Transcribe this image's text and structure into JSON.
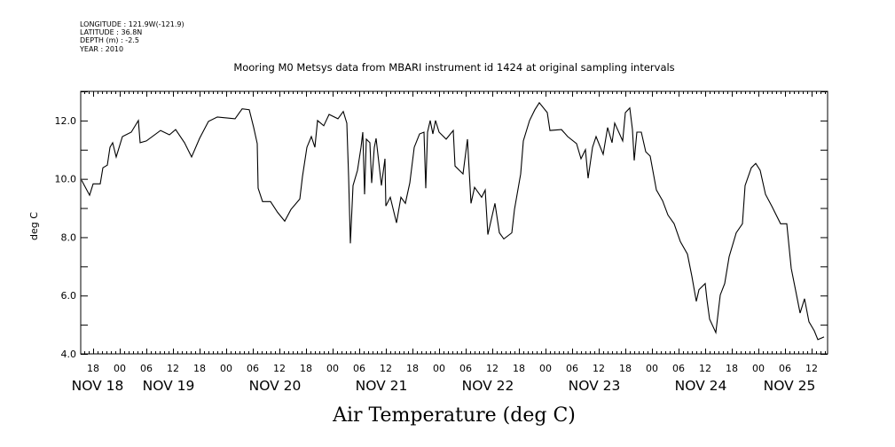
{
  "header": {
    "longitude": "LONGITUDE : 121.9W(-121.9)",
    "latitude": "LATITUDE : 36.8N",
    "depth": "DEPTH (m) : -2.5",
    "year": "YEAR : 2010"
  },
  "chart_data": {
    "type": "line",
    "title": "Mooring M0 Metsys data from MBARI instrument id 1424 at original sampling intervals",
    "xlabel": "Air Temperature (deg C)",
    "ylabel": "deg C",
    "x_unit": "hours since NOV 19 00:00",
    "xlim": [
      -8.8,
      159.6
    ],
    "ylim": [
      4,
      13
    ],
    "yticks": [
      4,
      6,
      8,
      10,
      12
    ],
    "ytick_labels": [
      "4.0",
      "6.0",
      "8.0",
      "10.0",
      "12.0"
    ],
    "hour_ticks": [
      -6,
      0,
      6,
      12,
      18,
      24,
      30,
      36,
      42,
      48,
      54,
      60,
      66,
      72,
      78,
      84,
      90,
      96,
      102,
      108,
      114,
      120,
      126,
      132,
      138,
      144,
      150,
      156
    ],
    "hour_labels": [
      "18",
      "00",
      "06",
      "12",
      "18",
      "00",
      "06",
      "12",
      "18",
      "00",
      "06",
      "12",
      "18",
      "00",
      "06",
      "12",
      "18",
      "00",
      "06",
      "12",
      "18",
      "00",
      "06",
      "12",
      "18",
      "00",
      "06",
      "12"
    ],
    "day_labels": [
      {
        "label": "NOV 18",
        "at": -5
      },
      {
        "label": "NOV 19",
        "at": 11
      },
      {
        "label": "NOV 20",
        "at": 35
      },
      {
        "label": "NOV 21",
        "at": 59
      },
      {
        "label": "NOV 22",
        "at": 83
      },
      {
        "label": "NOV 23",
        "at": 107
      },
      {
        "label": "NOV 24",
        "at": 131
      },
      {
        "label": "NOV 25",
        "at": 151
      }
    ],
    "grid": false,
    "series": [
      {
        "name": "Air Temperature",
        "x": [
          -8.6,
          -6.8,
          -6,
          -4.4,
          -3.8,
          -2.8,
          -2.2,
          -1.6,
          -0.8,
          0.6,
          2.6,
          4.2,
          4.6,
          6,
          9.2,
          11.2,
          12.6,
          14.6,
          16.2,
          18,
          20,
          22,
          26,
          27.6,
          29.2,
          30.2,
          31,
          31.2,
          32.2,
          34,
          35.6,
          37.2,
          38.6,
          40.6,
          41.2,
          42.2,
          43.2,
          44,
          44.6,
          46,
          47.2,
          49.2,
          50.4,
          51.2,
          51.6,
          52,
          52.6,
          53.6,
          54.4,
          54.8,
          55.2,
          55.6,
          56.4,
          56.8,
          57.4,
          57.8,
          59,
          59.8,
          60,
          61,
          62.4,
          63.4,
          64.4,
          65.4,
          66.4,
          67.6,
          68.6,
          69,
          69.4,
          70,
          70.6,
          71.2,
          72,
          73.6,
          75.2,
          75.6,
          77.4,
          78.4,
          79.2,
          80,
          81.6,
          82.4,
          83,
          84.6,
          85.6,
          86.6,
          88.4,
          89,
          90.4,
          91,
          92.4,
          93.6,
          94.6,
          96.4,
          97,
          99.6,
          101,
          103,
          104,
          105,
          105.6,
          106.6,
          107.4,
          109,
          110,
          111,
          111.6,
          113.4,
          114,
          115,
          115.6,
          116,
          116.6,
          117.6,
          118.6,
          119.6,
          121,
          122.4,
          123.6,
          125,
          126.4,
          128,
          129,
          130,
          130.6,
          132,
          132.4,
          133,
          134.4,
          135.4,
          136.4,
          137.4,
          139,
          140.4,
          141,
          142.4,
          143.4,
          144.4,
          145.6,
          147,
          149,
          150.4,
          151.4,
          152.4,
          153.4,
          154.4,
          155.4,
          156.6,
          157.4,
          158.8
        ],
        "y": [
          9.95,
          9.44,
          9.83,
          9.83,
          10.38,
          10.47,
          11.08,
          11.24,
          10.75,
          11.45,
          11.6,
          12.0,
          11.24,
          11.3,
          11.66,
          11.51,
          11.69,
          11.24,
          10.75,
          11.39,
          11.97,
          12.12,
          12.06,
          12.4,
          12.37,
          11.76,
          11.21,
          9.68,
          9.22,
          9.22,
          8.85,
          8.55,
          8.95,
          9.31,
          10.08,
          11.08,
          11.45,
          11.08,
          12.0,
          11.82,
          12.21,
          12.06,
          12.31,
          11.91,
          10.08,
          7.79,
          9.77,
          10.29,
          11.08,
          11.6,
          9.47,
          11.36,
          11.24,
          9.86,
          11.08,
          11.39,
          9.77,
          10.69,
          9.07,
          9.37,
          8.49,
          9.37,
          9.16,
          9.86,
          11.08,
          11.54,
          11.6,
          9.68,
          11.6,
          12.0,
          11.54,
          12.0,
          11.6,
          11.36,
          11.66,
          10.44,
          10.17,
          11.36,
          9.16,
          9.71,
          9.37,
          9.62,
          8.09,
          9.16,
          8.15,
          7.94,
          8.15,
          8.95,
          10.17,
          11.3,
          12.0,
          12.37,
          12.61,
          12.27,
          11.66,
          11.69,
          11.45,
          11.21,
          10.69,
          11.0,
          10.02,
          11.08,
          11.45,
          10.84,
          11.76,
          11.24,
          11.91,
          11.3,
          12.27,
          12.43,
          11.69,
          10.63,
          11.6,
          11.6,
          10.93,
          10.78,
          9.62,
          9.25,
          8.76,
          8.46,
          7.85,
          7.42,
          6.66,
          5.8,
          6.2,
          6.41,
          5.86,
          5.19,
          4.73,
          6.02,
          6.41,
          7.33,
          8.15,
          8.46,
          9.77,
          10.38,
          10.53,
          10.29,
          9.47,
          9.07,
          8.46,
          8.46,
          6.93,
          6.17,
          5.4,
          5.89,
          5.1,
          4.79,
          4.49,
          4.58
        ]
      }
    ]
  }
}
